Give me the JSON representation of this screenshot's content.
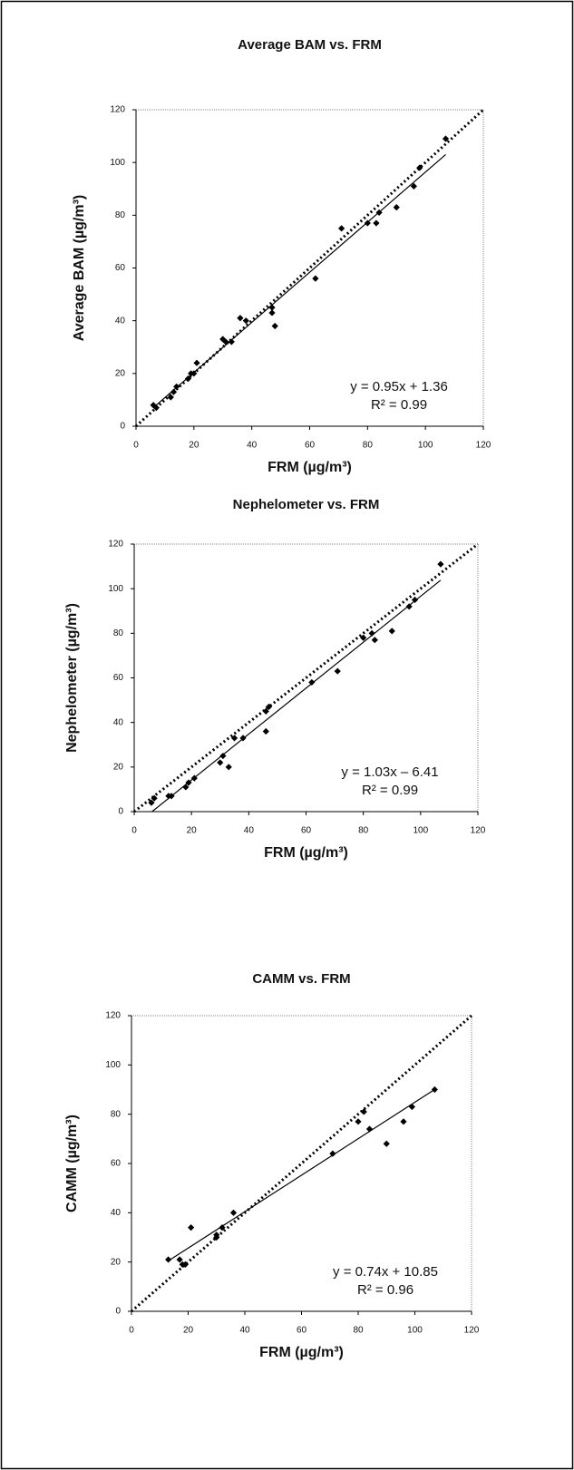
{
  "chart_data": [
    {
      "type": "scatter",
      "title": "Average BAM vs. FRM",
      "x_label": "FRM (µg/m³)",
      "y_label": "Average BAM (µg/m³)",
      "xlim": [
        0,
        120
      ],
      "ylim": [
        0,
        120
      ],
      "xticks": [
        0,
        20,
        40,
        60,
        80,
        100,
        120
      ],
      "yticks": [
        0,
        20,
        40,
        60,
        80,
        100,
        120
      ],
      "color": "#000000",
      "x": [
        6,
        7,
        12,
        13,
        14,
        18,
        19,
        20,
        21,
        30,
        31,
        33,
        36,
        38,
        47,
        47,
        48,
        62,
        71,
        80,
        83,
        84,
        90,
        96,
        98,
        107
      ],
      "values": [
        8,
        7,
        11,
        13,
        15,
        18,
        20,
        20,
        24,
        33,
        32,
        32,
        41,
        40,
        45,
        43,
        38,
        56,
        75,
        77,
        77,
        81,
        83,
        91,
        98,
        109
      ],
      "trendline": {
        "slope": 0.95,
        "intercept": 1.36
      },
      "annotations": [
        "y = 0.95x + 1.36",
        "R² = 0.99"
      ]
    },
    {
      "type": "scatter",
      "title": "Nephelometer vs. FRM",
      "x_label": "FRM (µg/m³)",
      "y_label": "Nephelometer (µg/m³)",
      "xlim": [
        0,
        120
      ],
      "ylim": [
        0,
        120
      ],
      "xticks": [
        0,
        20,
        40,
        60,
        80,
        100,
        120
      ],
      "yticks": [
        0,
        20,
        40,
        60,
        80,
        100,
        120
      ],
      "color": "#000000",
      "x": [
        6,
        7,
        12,
        13,
        18,
        19,
        21,
        30,
        31,
        33,
        35,
        38,
        46,
        46,
        47,
        62,
        71,
        80,
        83,
        84,
        90,
        96,
        98,
        107
      ],
      "values": [
        4,
        6,
        7,
        7,
        11,
        13,
        15,
        22,
        25,
        20,
        33,
        33,
        36,
        45,
        47,
        58,
        63,
        78,
        80,
        77,
        81,
        92,
        95,
        111
      ],
      "trendline": {
        "slope": 1.03,
        "intercept": -6.41
      },
      "annotations": [
        "y = 1.03x – 6.41",
        "R² = 0.99"
      ]
    },
    {
      "type": "scatter",
      "title": "CAMM vs. FRM",
      "x_label": "FRM (µg/m³)",
      "y_label": "CAMM (µg/m³)",
      "xlim": [
        0,
        120
      ],
      "ylim": [
        0,
        120
      ],
      "xticks": [
        0,
        20,
        40,
        60,
        80,
        100,
        120
      ],
      "yticks": [
        0,
        20,
        40,
        60,
        80,
        100,
        120
      ],
      "color": "#000000",
      "x": [
        13,
        17,
        18,
        19,
        21,
        30,
        30,
        32,
        36,
        71,
        80,
        82,
        84,
        90,
        96,
        99,
        107
      ],
      "values": [
        21,
        21,
        19,
        19,
        34,
        30,
        31,
        34,
        40,
        64,
        77,
        81,
        74,
        68,
        77,
        83,
        90
      ],
      "trendline": {
        "slope": 0.74,
        "intercept": 10.85
      },
      "annotations": [
        "y = 0.74x + 10.85",
        "R² = 0.96"
      ]
    }
  ]
}
